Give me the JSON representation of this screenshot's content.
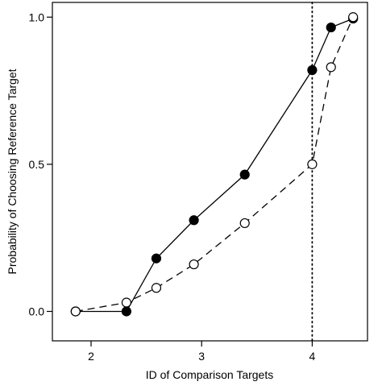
{
  "chart_data": {
    "type": "line",
    "title": "",
    "xlabel": "ID of Comparison Targets",
    "ylabel": "Probability of Choosing Reference Target",
    "xlim": [
      1.65,
      4.5
    ],
    "ylim": [
      -0.1,
      1.05
    ],
    "xticks": [
      2,
      3,
      4
    ],
    "xtick_labels": [
      "2",
      "3",
      "4"
    ],
    "yticks": [
      0.0,
      0.5,
      1.0
    ],
    "ytick_labels": [
      "0.0",
      "0.5",
      "1.0"
    ],
    "grid": false,
    "reference_line": {
      "axis": "x",
      "value": 4.0,
      "style": "dotted"
    },
    "series": [
      {
        "marker": "filled-circle",
        "line_style": "solid",
        "x": [
          1.86,
          2.32,
          2.59,
          2.93,
          3.39,
          4.0,
          4.17,
          4.37
        ],
        "y": [
          0.0,
          0.0,
          0.18,
          0.31,
          0.465,
          0.82,
          0.965,
          0.995
        ]
      },
      {
        "marker": "open-circle",
        "line_style": "dashed",
        "x": [
          1.86,
          2.32,
          2.59,
          2.93,
          3.39,
          4.0,
          4.17,
          4.37
        ],
        "y": [
          0.0,
          0.03,
          0.08,
          0.16,
          0.3,
          0.5,
          0.83,
          1.0
        ]
      }
    ]
  }
}
